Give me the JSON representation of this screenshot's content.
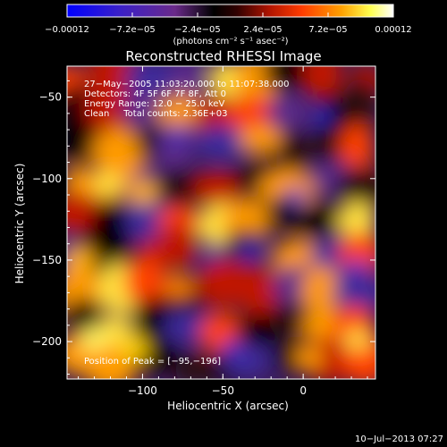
{
  "chart_data": {
    "type": "heatmap",
    "title": "Reconstructed RHESSI Image",
    "xlabel": "Heliocentric X (arcsec)",
    "ylabel": "Heliocentric Y (arcsec)",
    "xlim": [
      -147,
      45
    ],
    "ylim": [
      -223,
      -31
    ],
    "x_ticks": [
      -100,
      -50,
      0
    ],
    "y_ticks": [
      -50,
      -100,
      -150,
      -200
    ],
    "x_tick_labels": [
      "−100",
      "−50",
      "0"
    ],
    "y_tick_labels": [
      "−50",
      "−100",
      "−150",
      "−200"
    ],
    "colorbar": {
      "range": [
        -0.00012,
        0.00012
      ],
      "tick_values": [
        -0.00012,
        -7.2e-05,
        -2.4e-05,
        2.4e-05,
        7.2e-05,
        0.00012
      ],
      "tick_labels": [
        "−0.00012",
        "−7.2e−05",
        "−2.4e−05",
        "2.4e−05",
        "7.2e−05",
        "0.00012"
      ],
      "units_label": "(photons cm⁻² s⁻¹ asec⁻²)",
      "colors": [
        "#0000ff",
        "#5a2a9a",
        "#000000",
        "#a01000",
        "#ff3000",
        "#ff9a00",
        "#ffff40",
        "#ffffff"
      ]
    },
    "annotations": [
      "27−May−2005 11:03:20.000 to 11:07:38.000",
      "Detectors: 4F 5F 6F 7F 8F, Att 0",
      "Energy Range: 12.0 − 25.0 keV",
      "Clean     Total counts: 2.36E+03"
    ],
    "peak_label": "Position of Peak = [−95,−196]",
    "peak_position": [
      -95,
      -196
    ],
    "grid": false
  },
  "timestamp": "10−Jul−2013 07:27"
}
